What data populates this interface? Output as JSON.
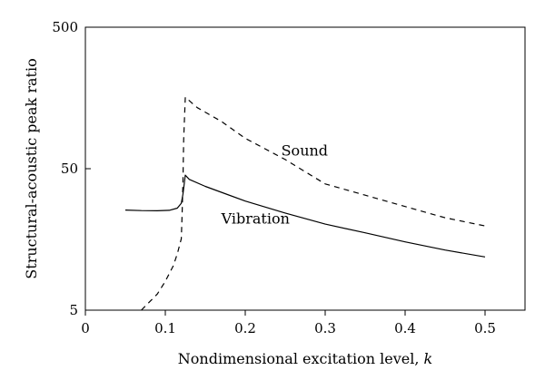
{
  "chart_data": {
    "type": "line",
    "title": "",
    "xlabel": "Nondimensional excitation level, k",
    "xlabel_text": "Nondimensional excitation level, ",
    "xlabel_var": "k",
    "ylabel": "Structural-acoustic peak ratio",
    "xlim": [
      0,
      0.55
    ],
    "ylim": [
      5,
      500
    ],
    "yscale": "log",
    "x_ticks": [
      0,
      0.1,
      0.2,
      0.3,
      0.4,
      0.5
    ],
    "x_tick_labels": [
      "0",
      "0.1",
      "0.2",
      "0.3",
      "0.4",
      "0.5"
    ],
    "y_ticks": [
      5,
      50,
      500
    ],
    "y_tick_labels": [
      "5",
      "50",
      "500"
    ],
    "grid": false,
    "legend": "none",
    "series": [
      {
        "name": "Vibration",
        "style": "solid",
        "color": "#000000",
        "points": [
          [
            0.05,
            25.5
          ],
          [
            0.07,
            25.3
          ],
          [
            0.09,
            25.2
          ],
          [
            0.105,
            25.4
          ],
          [
            0.115,
            26.3
          ],
          [
            0.12,
            28.5
          ],
          [
            0.122,
            33
          ],
          [
            0.125,
            45
          ],
          [
            0.13,
            42
          ],
          [
            0.15,
            37.5
          ],
          [
            0.2,
            29.5
          ],
          [
            0.25,
            24.3
          ],
          [
            0.3,
            20.3
          ],
          [
            0.35,
            17.6
          ],
          [
            0.4,
            15.2
          ],
          [
            0.45,
            13.3
          ],
          [
            0.5,
            11.9
          ]
        ]
      },
      {
        "name": "Sound",
        "style": "dashed",
        "color": "#000000",
        "points": [
          [
            0.07,
            5
          ],
          [
            0.08,
            5.7
          ],
          [
            0.09,
            6.5
          ],
          [
            0.1,
            8
          ],
          [
            0.11,
            10.3
          ],
          [
            0.115,
            12.5
          ],
          [
            0.12,
            16
          ],
          [
            0.121,
            24
          ],
          [
            0.122,
            40
          ],
          [
            0.123,
            80
          ],
          [
            0.125,
            160
          ],
          [
            0.14,
            135
          ],
          [
            0.17,
            108
          ],
          [
            0.2,
            82
          ],
          [
            0.25,
            58
          ],
          [
            0.3,
            39
          ],
          [
            0.35,
            32.5
          ],
          [
            0.4,
            27
          ],
          [
            0.45,
            22.5
          ],
          [
            0.5,
            19.7
          ]
        ]
      }
    ],
    "annotations": [
      {
        "text": "Sound",
        "x": 0.245,
        "y": 62
      },
      {
        "text": "Vibration",
        "x": 0.17,
        "y": 20.5
      }
    ]
  }
}
